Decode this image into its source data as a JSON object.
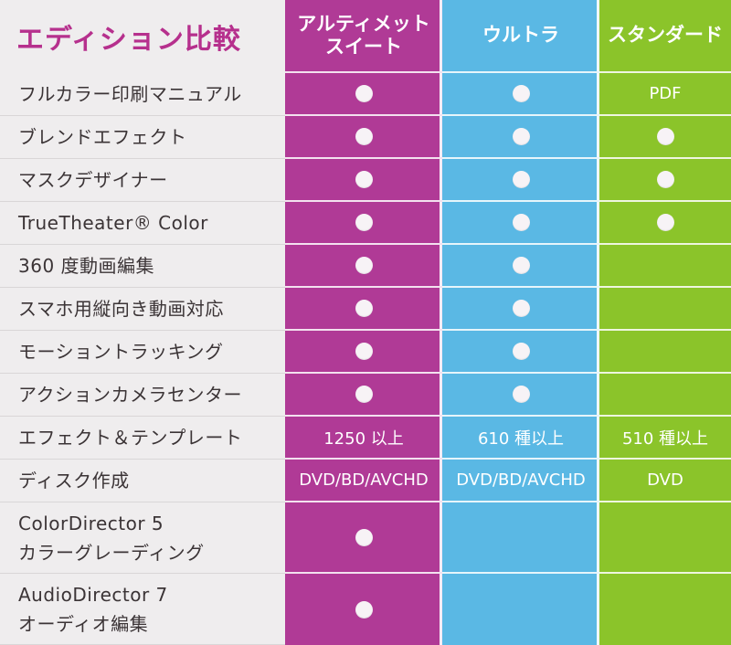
{
  "title": "エディション比較",
  "editions": [
    {
      "name": "アルティメット\nスイート",
      "color": "#b03a96"
    },
    {
      "name": "ウルトラ",
      "color": "#5ab8e4"
    },
    {
      "name": "スタンダード",
      "color": "#8bc42a"
    }
  ],
  "rows": [
    {
      "feature": "フルカラー印刷マニュアル",
      "ultimate": "dot",
      "ultra": "dot",
      "standard": "PDF"
    },
    {
      "feature": "ブレンドエフェクト",
      "ultimate": "dot",
      "ultra": "dot",
      "standard": "dot"
    },
    {
      "feature": "マスクデザイナー",
      "ultimate": "dot",
      "ultra": "dot",
      "standard": "dot"
    },
    {
      "feature": "TrueTheater® Color",
      "ultimate": "dot",
      "ultra": "dot",
      "standard": "dot"
    },
    {
      "feature": "360 度動画編集",
      "ultimate": "dot",
      "ultra": "dot",
      "standard": ""
    },
    {
      "feature": "スマホ用縦向き動画対応",
      "ultimate": "dot",
      "ultra": "dot",
      "standard": ""
    },
    {
      "feature": "モーショントラッキング",
      "ultimate": "dot",
      "ultra": "dot",
      "standard": ""
    },
    {
      "feature": "アクションカメラセンター",
      "ultimate": "dot",
      "ultra": "dot",
      "standard": ""
    },
    {
      "feature": "エフェクト＆テンプレート",
      "ultimate": "1250 以上",
      "ultra": "610 種以上",
      "standard": "510 種以上"
    },
    {
      "feature": "ディスク作成",
      "ultimate": "DVD/BD/AVCHD",
      "ultra": "DVD/BD/AVCHD",
      "standard": "DVD"
    },
    {
      "feature": "ColorDirector 5\nカラーグレーディング",
      "ultimate": "dot",
      "ultra": "",
      "standard": ""
    },
    {
      "feature": "AudioDirector 7\nオーディオ編集",
      "ultimate": "dot",
      "ultra": "",
      "standard": ""
    }
  ]
}
